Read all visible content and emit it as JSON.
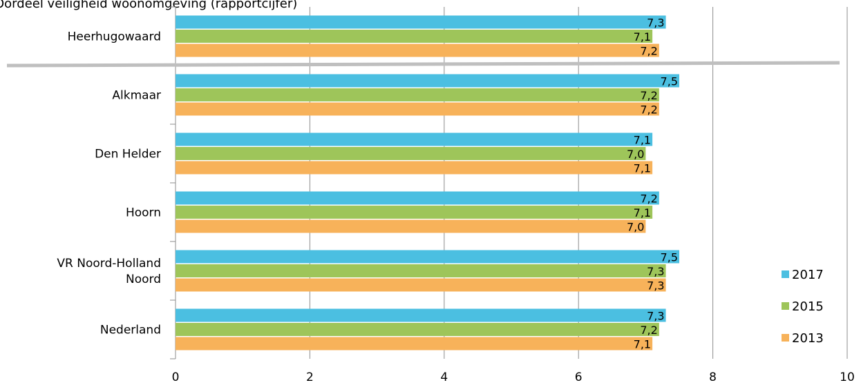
{
  "chart_data": {
    "type": "bar",
    "orientation": "horizontal",
    "title": "Oordeel veiligheid woonomgeving (rapportcijfer)",
    "categories": [
      "Heerhugowaard",
      "Alkmaar",
      "Den Helder",
      "Hoorn",
      "VR Noord-Holland Noord",
      "Nederland"
    ],
    "category_lines": [
      [
        "Heerhugowaard"
      ],
      [
        "Alkmaar"
      ],
      [
        "Den Helder"
      ],
      [
        "Hoorn"
      ],
      [
        "VR Noord-Holland",
        "Noord"
      ],
      [
        "Nederland"
      ]
    ],
    "series": [
      {
        "name": "2017",
        "color": "#4bbfe1",
        "values": [
          7.3,
          7.5,
          7.1,
          7.2,
          7.5,
          7.3
        ],
        "labels": [
          "7,3",
          "7,5",
          "7,1",
          "7,2",
          "7,5",
          "7,3"
        ]
      },
      {
        "name": "2015",
        "color": "#9ec55a",
        "values": [
          7.1,
          7.2,
          7.0,
          7.1,
          7.3,
          7.2
        ],
        "labels": [
          "7,1",
          "7,2",
          "7,0",
          "7,1",
          "7,3",
          "7,2"
        ]
      },
      {
        "name": "2013",
        "color": "#f7b25a",
        "values": [
          7.2,
          7.2,
          7.1,
          7.0,
          7.3,
          7.1
        ],
        "labels": [
          "7,2",
          "7,2",
          "7,1",
          "7,0",
          "7,3",
          "7,1"
        ]
      }
    ],
    "xlim": [
      0,
      10
    ],
    "xticks": [
      0,
      2,
      4,
      6,
      8,
      10
    ],
    "xtick_labels": [
      "0",
      "2",
      "4",
      "6",
      "8",
      "10"
    ],
    "grid": true,
    "legend_position": "bottom-right",
    "separator_after_category": "Heerhugowaard"
  }
}
